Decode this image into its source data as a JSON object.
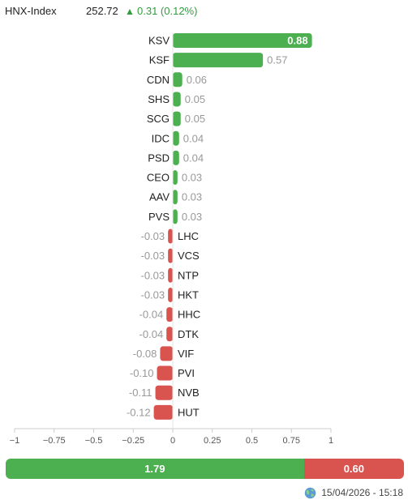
{
  "header": {
    "index_name": "HNX-Index",
    "index_value": "252.72",
    "arrow": "▲",
    "change": "0.31 (0.12%)"
  },
  "chart_data": {
    "type": "bar",
    "orientation": "horizontal",
    "categories": [
      "KSV",
      "KSF",
      "CDN",
      "SHS",
      "SCG",
      "IDC",
      "PSD",
      "CEO",
      "AAV",
      "PVS",
      "LHC",
      "VCS",
      "NTP",
      "HKT",
      "HHC",
      "DTK",
      "VIF",
      "PVI",
      "NVB",
      "HUT"
    ],
    "values": [
      0.88,
      0.57,
      0.06,
      0.05,
      0.05,
      0.04,
      0.04,
      0.03,
      0.03,
      0.03,
      -0.03,
      -0.03,
      -0.03,
      -0.03,
      -0.04,
      -0.04,
      -0.08,
      -0.1,
      -0.11,
      -0.12
    ],
    "value_labels": [
      "0.88",
      "0.57",
      "0.06",
      "0.05",
      "0.05",
      "0.04",
      "0.04",
      "0.03",
      "0.03",
      "0.03",
      "-0.03",
      "-0.03",
      "-0.03",
      "-0.03",
      "-0.04",
      "-0.04",
      "-0.08",
      "-0.10",
      "-0.11",
      "-0.12"
    ],
    "xlim": [
      -1,
      1
    ],
    "xticks": [
      -1,
      -0.75,
      -0.5,
      -0.25,
      0,
      0.25,
      0.5,
      0.75,
      1
    ],
    "xtick_labels": [
      "−1",
      "−0.75",
      "−0.5",
      "−0.25",
      "0",
      "0.25",
      "0.5",
      "0.75",
      "1"
    ],
    "title": "",
    "xlabel": "",
    "ylabel": "",
    "grid": false,
    "positive_color": "#4caf50",
    "negative_color": "#d9534f"
  },
  "summary": {
    "positive_label": "1.79",
    "positive_value": 1.79,
    "negative_label": "0.60",
    "negative_value": 0.6,
    "positive_color": "#4caf50",
    "negative_color": "#d9534f"
  },
  "footer": {
    "timestamp": "15/04/2026 - 15:18",
    "icon": "globe-icon"
  }
}
